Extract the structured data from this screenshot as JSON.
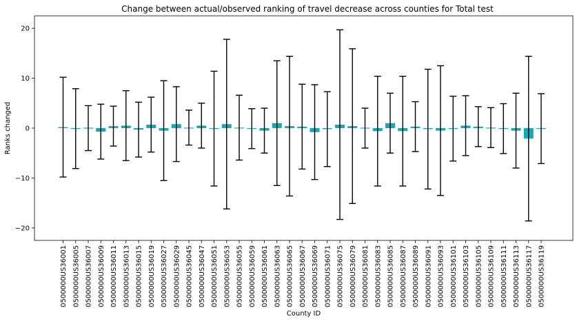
{
  "chart_data": {
    "type": "bar",
    "title": "Change between actual/observed ranking of travel decrease across counties for Total test",
    "xlabel": "County ID",
    "ylabel": "Ranks changed",
    "ylim": [
      -22.5,
      22.5
    ],
    "yticks": [
      -20,
      -10,
      0,
      10,
      20
    ],
    "grid": false,
    "bar_color": "#17a8b6",
    "errorbar_color": "#000000",
    "categories": [
      "0500000US36001",
      "0500000US36005",
      "0500000US36007",
      "0500000US36009",
      "0500000US36011",
      "0500000US36013",
      "0500000US36015",
      "0500000US36019",
      "0500000US36027",
      "0500000US36029",
      "0500000US36045",
      "0500000US36047",
      "0500000US36051",
      "0500000US36053",
      "0500000US36055",
      "0500000US36059",
      "0500000US36061",
      "0500000US36063",
      "0500000US36065",
      "0500000US36067",
      "0500000US36069",
      "0500000US36071",
      "0500000US36075",
      "0500000US36079",
      "0500000US36081",
      "0500000US36083",
      "0500000US36085",
      "0500000US36087",
      "0500000US36089",
      "0500000US36091",
      "0500000US36093",
      "0500000US36101",
      "0500000US36103",
      "0500000US36105",
      "0500000US36109",
      "0500000US36111",
      "0500000US36113",
      "0500000US36117",
      "0500000US36119"
    ],
    "values": [
      0.2,
      -0.1,
      0.0,
      -0.7,
      0.4,
      0.5,
      -0.3,
      0.7,
      -0.5,
      0.8,
      0.1,
      0.5,
      -0.1,
      0.8,
      0.1,
      -0.1,
      -0.5,
      1.0,
      0.4,
      0.3,
      -0.8,
      -0.2,
      0.7,
      0.4,
      0.0,
      -0.6,
      1.0,
      -0.6,
      0.3,
      -0.2,
      -0.5,
      -0.1,
      0.5,
      0.3,
      0.1,
      -0.1,
      -0.5,
      -2.1,
      -0.1
    ],
    "errors": [
      10.0,
      8.0,
      4.5,
      5.5,
      4.0,
      7.0,
      5.5,
      5.5,
      10.0,
      7.5,
      3.5,
      4.5,
      11.5,
      17.0,
      6.5,
      4.0,
      4.5,
      12.5,
      14.0,
      8.5,
      9.5,
      7.5,
      19.0,
      15.5,
      4.0,
      11.0,
      6.0,
      11.0,
      5.0,
      12.0,
      13.0,
      6.5,
      6.0,
      4.0,
      4.0,
      5.0,
      7.5,
      16.5,
      7.0
    ]
  }
}
